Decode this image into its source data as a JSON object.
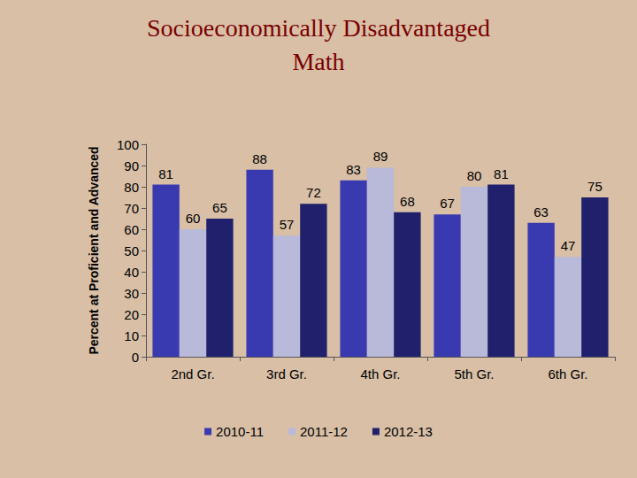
{
  "chart_data": {
    "type": "bar",
    "title": "Socioeconomically Disadvantaged",
    "subtitle": "Math",
    "y_label": "Percent at Proficient and Advanced",
    "categories": [
      "2nd Gr.",
      "3rd Gr.",
      "4th Gr.",
      "5th Gr.",
      "6th Gr."
    ],
    "series": [
      {
        "name": "2010-11",
        "color": "#3a3ab0",
        "values": [
          81,
          88,
          83,
          67,
          63
        ]
      },
      {
        "name": "2011-12",
        "color": "#b9b9d9",
        "values": [
          60,
          57,
          89,
          80,
          47
        ]
      },
      {
        "name": "2012-13",
        "color": "#20206c",
        "values": [
          65,
          72,
          68,
          81,
          75
        ]
      }
    ],
    "ylim": [
      0,
      100
    ],
    "yticks": [
      0,
      10,
      20,
      30,
      40,
      50,
      60,
      70,
      80,
      90,
      100
    ],
    "grid": false,
    "legend": "bottom",
    "data_labels": true
  }
}
